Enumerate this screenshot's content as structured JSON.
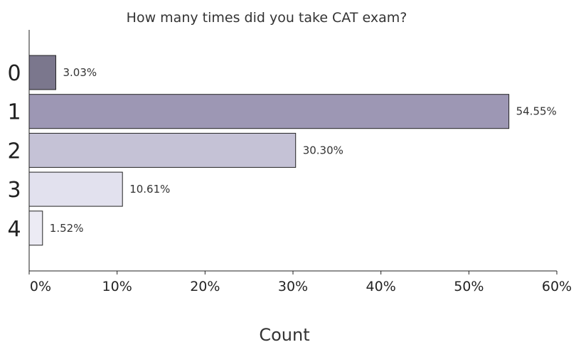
{
  "chart_data": {
    "type": "bar",
    "orientation": "horizontal",
    "title": "How many times did you take CAT exam?",
    "xlabel": "Count",
    "ylabel": "",
    "categories": [
      "0",
      "1",
      "2",
      "3",
      "4"
    ],
    "values": [
      3.03,
      54.55,
      30.3,
      10.61,
      1.52
    ],
    "data_labels": [
      "3.03%",
      "54.55%",
      "30.30%",
      "10.61%",
      "1.52%"
    ],
    "bar_colors": [
      "#7b778d",
      "#9d97b4",
      "#c5c2d6",
      "#e2e1ee",
      "#ecebf4"
    ],
    "xlim": [
      0,
      60
    ],
    "xticks": [
      0,
      10,
      20,
      30,
      40,
      50,
      60
    ],
    "xtick_labels": [
      "0%",
      "10%",
      "20%",
      "30%",
      "40%",
      "50%",
      "60%"
    ],
    "grid": false,
    "legend": "none"
  }
}
